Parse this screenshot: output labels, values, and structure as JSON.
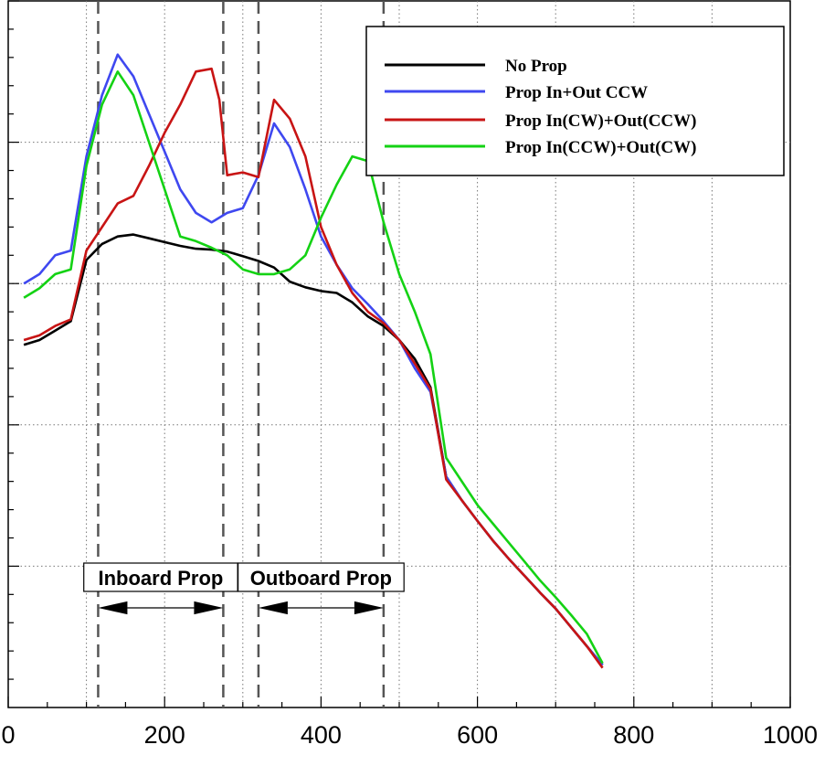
{
  "chart_data": {
    "type": "line",
    "title": "",
    "xlabel": "",
    "ylabel": "",
    "xlim": [
      0,
      1000
    ],
    "ylim": [
      0,
      7.5
    ],
    "grid": true,
    "x_ticks": [
      0,
      200,
      400,
      600,
      800,
      1000
    ],
    "y_tick_labels_shown": false,
    "legend_position": "top-right",
    "series": [
      {
        "name": "No Prop",
        "color": "#000000",
        "x": [
          20,
          40,
          60,
          80,
          100,
          120,
          140,
          160,
          180,
          200,
          220,
          240,
          260,
          280,
          300,
          320,
          340,
          360,
          380,
          400,
          420,
          440,
          460,
          480,
          500,
          520,
          540,
          560,
          580,
          600,
          620,
          640,
          660,
          680,
          700,
          720,
          740,
          760
        ],
        "y": [
          3.85,
          3.9,
          4.0,
          4.1,
          4.75,
          4.92,
          5.0,
          5.02,
          4.98,
          4.94,
          4.9,
          4.87,
          4.86,
          4.84,
          4.79,
          4.74,
          4.67,
          4.52,
          4.46,
          4.42,
          4.4,
          4.3,
          4.15,
          4.05,
          3.9,
          3.7,
          3.4,
          2.45,
          2.2,
          1.98,
          1.77,
          1.58,
          1.4,
          1.22,
          1.05,
          0.85,
          0.65,
          0.45
        ]
      },
      {
        "name": "Prop In+Out CCW",
        "color": "#3f48f0",
        "x": [
          20,
          40,
          60,
          80,
          100,
          120,
          140,
          160,
          180,
          200,
          220,
          240,
          260,
          280,
          300,
          320,
          340,
          360,
          380,
          400,
          420,
          440,
          460,
          480,
          500,
          520,
          540,
          560,
          580,
          600,
          620,
          640,
          660,
          680,
          700,
          720,
          740,
          760
        ],
        "y": [
          4.5,
          4.6,
          4.8,
          4.85,
          5.85,
          6.5,
          6.93,
          6.7,
          6.3,
          5.9,
          5.5,
          5.25,
          5.15,
          5.25,
          5.3,
          5.65,
          6.2,
          5.95,
          5.5,
          5.0,
          4.7,
          4.45,
          4.28,
          4.1,
          3.9,
          3.6,
          3.35,
          2.45,
          2.2,
          1.98,
          1.77,
          1.58,
          1.4,
          1.22,
          1.05,
          0.85,
          0.65,
          0.45
        ]
      },
      {
        "name": "Prop In(CW)+Out(CCW)",
        "color": "#c81414",
        "x": [
          20,
          40,
          60,
          80,
          100,
          120,
          140,
          160,
          180,
          200,
          220,
          240,
          260,
          270,
          280,
          300,
          320,
          340,
          360,
          380,
          400,
          420,
          440,
          460,
          480,
          500,
          520,
          540,
          560,
          580,
          600,
          620,
          640,
          660,
          680,
          700,
          720,
          740,
          760
        ],
        "y": [
          3.9,
          3.95,
          4.05,
          4.12,
          4.85,
          5.1,
          5.35,
          5.43,
          5.75,
          6.1,
          6.4,
          6.75,
          6.78,
          6.45,
          5.65,
          5.68,
          5.63,
          6.45,
          6.25,
          5.85,
          5.1,
          4.7,
          4.4,
          4.2,
          4.08,
          3.9,
          3.65,
          3.38,
          2.42,
          2.2,
          1.98,
          1.77,
          1.58,
          1.4,
          1.22,
          1.05,
          0.85,
          0.65,
          0.42
        ]
      },
      {
        "name": "Prop In(CCW)+Out(CW)",
        "color": "#14d214",
        "x": [
          20,
          40,
          60,
          80,
          100,
          120,
          140,
          160,
          180,
          200,
          220,
          240,
          260,
          280,
          300,
          320,
          340,
          360,
          380,
          400,
          420,
          440,
          460,
          480,
          500,
          520,
          540,
          560,
          580,
          600,
          620,
          640,
          660,
          680,
          700,
          720,
          740,
          760
        ],
        "y": [
          4.35,
          4.45,
          4.6,
          4.65,
          5.75,
          6.4,
          6.75,
          6.5,
          6.0,
          5.5,
          5.0,
          4.95,
          4.88,
          4.8,
          4.65,
          4.6,
          4.6,
          4.65,
          4.8,
          5.2,
          5.55,
          5.85,
          5.8,
          5.15,
          4.6,
          4.2,
          3.75,
          2.65,
          2.4,
          2.15,
          1.95,
          1.75,
          1.55,
          1.35,
          1.17,
          0.98,
          0.78,
          0.47
        ]
      }
    ],
    "vertical_reference_lines": [
      115,
      275,
      320,
      480
    ],
    "annotations": [
      {
        "label": "Inboard Prop",
        "from": 115,
        "to": 275
      },
      {
        "label": "Outboard Prop",
        "from": 320,
        "to": 480
      }
    ]
  }
}
